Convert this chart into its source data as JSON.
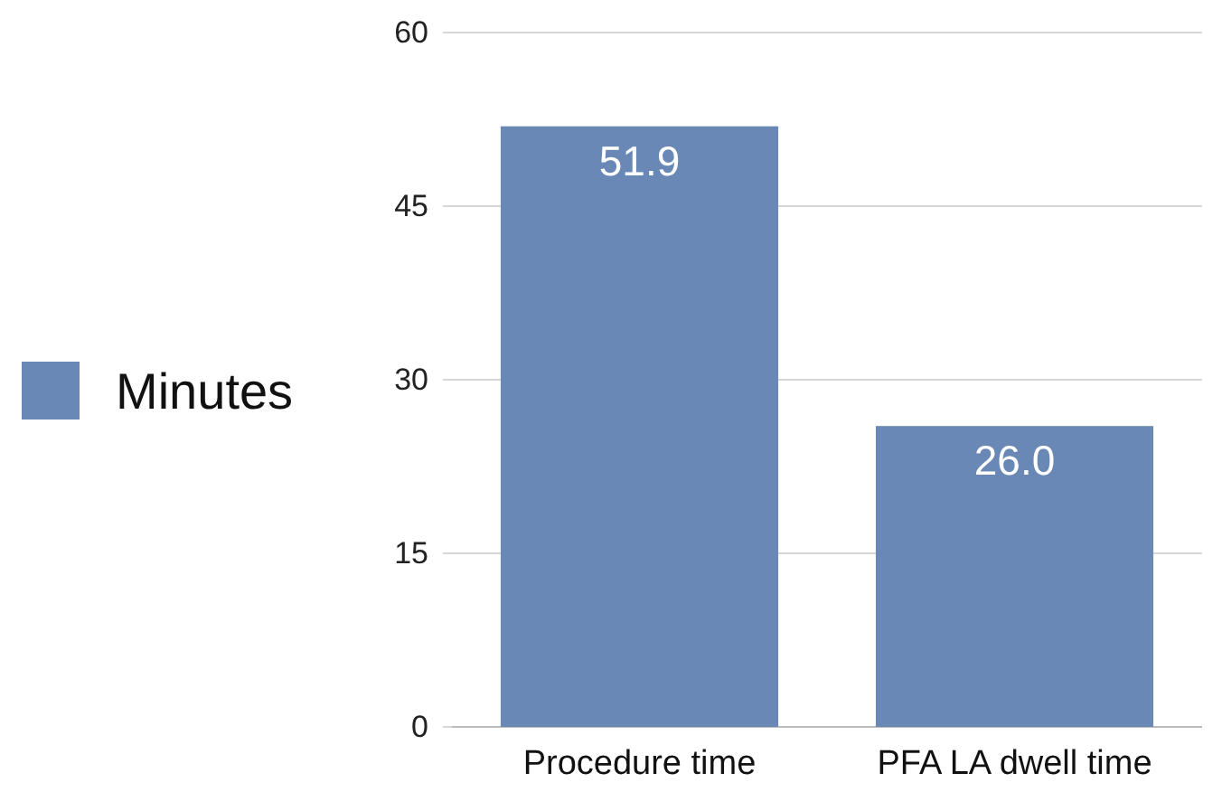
{
  "chart_data": {
    "type": "bar",
    "categories": [
      "Procedure time",
      "PFA LA dwell time"
    ],
    "series": [
      {
        "name": "Minutes",
        "color": "#6a88b5",
        "values": [
          51.9,
          26.0
        ],
        "value_labels": [
          "51.9",
          "26.0"
        ]
      }
    ],
    "ylim": [
      0,
      60
    ],
    "yticks": [
      0,
      15,
      30,
      45,
      60
    ],
    "grid": "y",
    "legend": "left"
  }
}
